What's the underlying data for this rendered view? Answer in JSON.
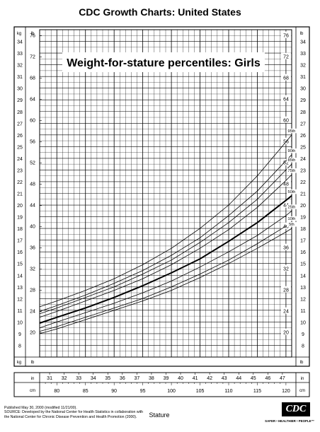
{
  "header": {
    "title": "CDC Growth Charts: United States"
  },
  "chart_data": {
    "type": "line",
    "title": "Weight-for-stature percentiles: Girls",
    "xlabel": "Stature",
    "ylabel": "",
    "x_unit_primary": "cm",
    "x_unit_secondary": "in",
    "y_unit_primary": "kg",
    "y_unit_secondary": "lb",
    "xlim": [
      77,
      121
    ],
    "ylim": [
      7,
      35
    ],
    "cm_ticks": [
      "80",
      "85",
      "90",
      "95",
      "100",
      "105",
      "110",
      "115",
      "120"
    ],
    "in_ticks": [
      "31",
      "32",
      "33",
      "34",
      "35",
      "36",
      "37",
      "38",
      "39",
      "40",
      "41",
      "42",
      "43",
      "44",
      "45",
      "46",
      "47"
    ],
    "kg_ticks": [
      "8",
      "9",
      "10",
      "11",
      "12",
      "13",
      "14",
      "15",
      "16",
      "17",
      "18",
      "19",
      "20",
      "21",
      "22",
      "23",
      "24",
      "25",
      "26",
      "27",
      "28",
      "29",
      "30",
      "31",
      "32",
      "33",
      "34"
    ],
    "lb_ticks": [
      "20",
      "24",
      "28",
      "32",
      "36",
      "40",
      "44",
      "48",
      "52",
      "56",
      "60",
      "64",
      "68",
      "72",
      "76"
    ],
    "grid": true,
    "x": [
      77,
      80,
      85,
      90,
      95,
      100,
      105,
      110,
      115,
      120,
      121
    ],
    "series": [
      {
        "name": "95th",
        "values": [
          11.3,
          11.8,
          12.7,
          13.7,
          14.9,
          16.3,
          18.0,
          20.0,
          22.5,
          25.4,
          26.0
        ]
      },
      {
        "name": "90th",
        "values": [
          10.9,
          11.4,
          12.3,
          13.3,
          14.4,
          15.7,
          17.2,
          19.1,
          21.2,
          23.8,
          24.3
        ]
      },
      {
        "name": "85th",
        "values": [
          10.7,
          11.2,
          12.1,
          13.0,
          14.1,
          15.3,
          16.8,
          18.5,
          20.5,
          23.0,
          23.5
        ]
      },
      {
        "name": "75th",
        "values": [
          10.4,
          10.9,
          11.8,
          12.7,
          13.7,
          14.9,
          16.3,
          17.9,
          19.8,
          22.1,
          22.6
        ]
      },
      {
        "name": "50th",
        "values": [
          9.9,
          10.4,
          11.2,
          12.1,
          13.1,
          14.2,
          15.4,
          16.9,
          18.5,
          20.4,
          20.8
        ]
      },
      {
        "name": "25th",
        "values": [
          9.5,
          10.0,
          10.8,
          11.6,
          12.5,
          13.5,
          14.7,
          16.0,
          17.4,
          19.1,
          19.5
        ]
      },
      {
        "name": "10th",
        "values": [
          9.2,
          9.6,
          10.4,
          11.2,
          12.0,
          13.0,
          14.1,
          15.3,
          16.7,
          18.2,
          18.5
        ]
      },
      {
        "name": "5th",
        "values": [
          9.0,
          9.4,
          10.2,
          11.0,
          11.8,
          12.7,
          13.8,
          15.0,
          16.3,
          17.7,
          18.0
        ]
      }
    ]
  },
  "footer": {
    "line1": "Published May 30, 2000 (modified 11/21/00).",
    "line2": "SOURCE: Developed by the National Center for Health Statistics in collaboration with",
    "line3": "the National Center for Chronic Disease Prevention and Health Promotion (2000).",
    "logo": "CDC",
    "tagline": "SAFER • HEALTHIER • PEOPLE™"
  }
}
